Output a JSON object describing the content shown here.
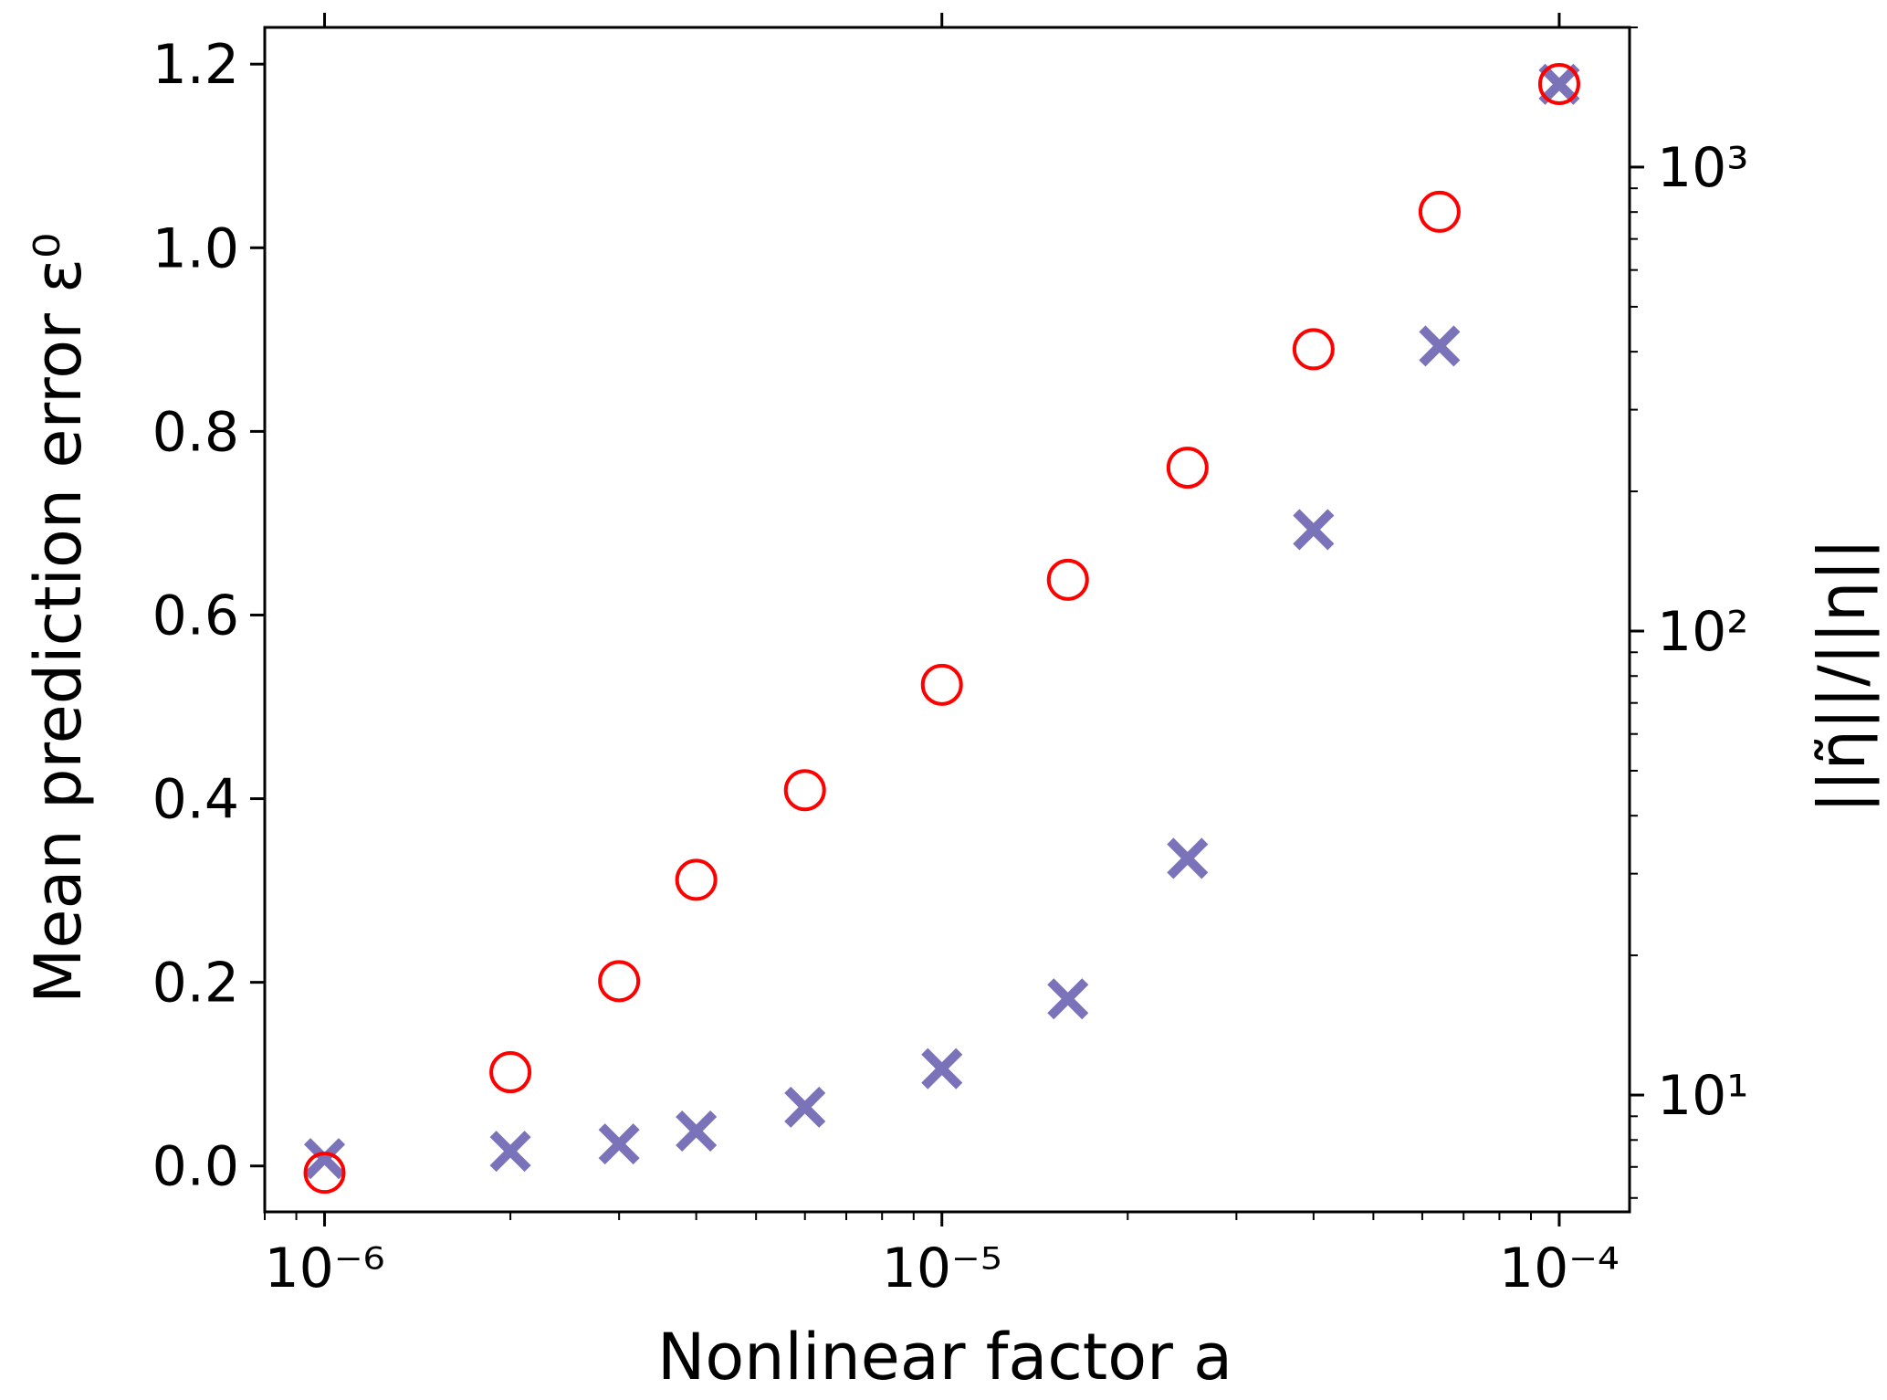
{
  "chart_data": {
    "type": "scatter",
    "xlabel": "Nonlinear factor a",
    "ylabel_left": "Mean prediction error ε⁰",
    "ylabel_right": "||η̃||/||η||",
    "x_scale": "log",
    "xlim": [
      8e-07,
      0.00013
    ],
    "x_ticks": [
      {
        "value": 1e-06,
        "label": "10⁻⁶"
      },
      {
        "value": 1e-05,
        "label": "10⁻⁵"
      },
      {
        "value": 0.0001,
        "label": "10⁻⁴"
      }
    ],
    "y_left_scale": "linear",
    "y_left_lim": [
      -0.05,
      1.24
    ],
    "y_left_ticks": [
      {
        "value": 0.0,
        "label": "0.0"
      },
      {
        "value": 0.2,
        "label": "0.2"
      },
      {
        "value": 0.4,
        "label": "0.4"
      },
      {
        "value": 0.6,
        "label": "0.6"
      },
      {
        "value": 0.8,
        "label": "0.8"
      },
      {
        "value": 1.0,
        "label": "1.0"
      },
      {
        "value": 1.2,
        "label": "1.2"
      }
    ],
    "y_right_scale": "log",
    "y_right_lim": [
      5.6,
      2000
    ],
    "y_right_ticks": [
      {
        "value": 10,
        "label": "10¹"
      },
      {
        "value": 100,
        "label": "10²"
      },
      {
        "value": 1000,
        "label": "10³"
      }
    ],
    "grid": false,
    "colors": {
      "error_marker": "#7b73b9",
      "ratio_marker": "#ff0000",
      "right_axis_label": "#ff0000"
    },
    "series": [
      {
        "axis": "left",
        "marker": "x",
        "x": [
          1e-06,
          2e-06,
          3e-06,
          4e-06,
          6e-06,
          1e-05,
          1.6e-05,
          2.5e-05,
          4e-05,
          6.4e-05,
          0.0001
        ],
        "y": [
          0.008,
          0.016,
          0.024,
          0.038,
          0.064,
          0.106,
          0.182,
          0.335,
          0.693,
          0.893,
          1.178
        ]
      },
      {
        "axis": "right",
        "marker": "o",
        "x": [
          1e-06,
          2e-06,
          3e-06,
          4e-06,
          6e-06,
          1e-05,
          1.6e-05,
          2.5e-05,
          4e-05,
          6.4e-05,
          0.0001
        ],
        "y": [
          6.8,
          11.2,
          17.6,
          29.1,
          45.4,
          76.6,
          129,
          225,
          405,
          801,
          1510
        ]
      }
    ]
  }
}
